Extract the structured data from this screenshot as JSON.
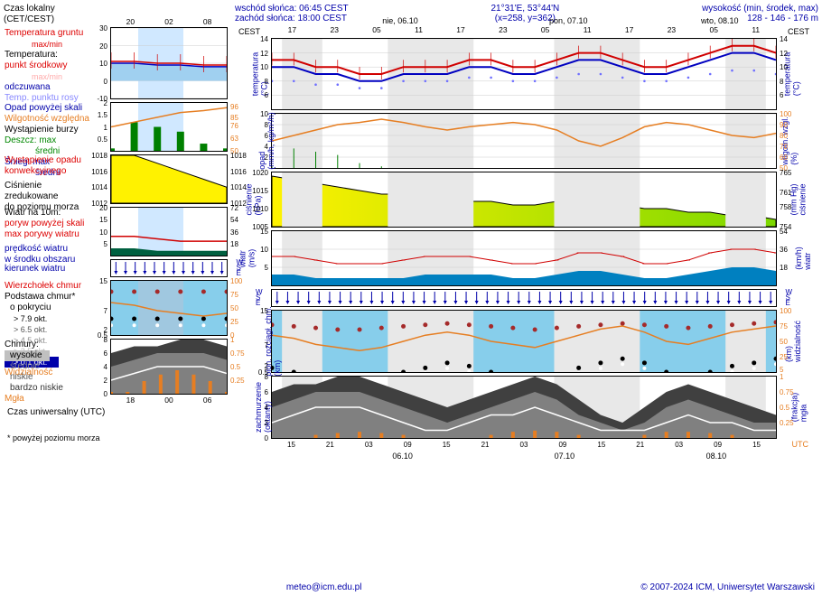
{
  "header": {
    "sunrise_label": "wschód słońca: 06:45 CEST",
    "sunset_label": "zachód słońca: 18:00 CEST",
    "coord": "21°31'E, 53°44'N",
    "xy": "(x=258, y=362)",
    "elevation_label": "wysokość (min, środek, max)",
    "elevation": "128 - 146 - 176 m"
  },
  "legend": {
    "local_time": "Czas lokalny",
    "local_tz": "(CET/CEST)",
    "ground_temp": "Temperatura gruntu",
    "maxmin": "max/min",
    "temp_label": "Temperatura:",
    "midpoint": "punkt środkowy",
    "max_min_tiny": "max/min",
    "felt": "odczuwana",
    "dewpoint": "Temp. punktu rosy",
    "precip_over": "Opad powyżej skali",
    "rel_humidity": "Wilgotność względna",
    "storm": "Wystąpienie burzy",
    "rain": "Deszcz:",
    "max": "max",
    "mean": "średni",
    "snow": "Śnieg:",
    "convective": "Wystąpienie opadu",
    "convective2": "konwekcyjnego",
    "pressure": "Ciśnienie",
    "pressure_red": "zredukowane",
    "pressure_sea": "do poziomu morza",
    "wind10m": "Wiatr na 10m:",
    "gust_over": "poryw powyżej skali",
    "max_gust": "max porywy wiatru",
    "wind_speed": "prędkość wiatru",
    "wind_mid": "w środku obszaru",
    "wind_dir": "kierunek wiatru",
    "cloud_top": "Wierzchołek chmur",
    "cloud_base": "Podstawa chmur*",
    "cloud_cover": "o pokryciu",
    "okt79": "> 7.9 okt.",
    "okt65": "> 6.5 okt.",
    "okt45": "> 4.5 okt.",
    "okt25": "> 2.5 okt.",
    "okt01": "> 0.1 okt.",
    "visibility": "Widzialność",
    "clouds": "Chmury:",
    "high": "wysokie",
    "mid": "średnie",
    "low": "niskie",
    "vlow": "bardzo niskie",
    "fog": "Mgła",
    "utc": "Czas uniwersalny (UTC)",
    "note": "* powyżej poziomu morza",
    "cest_l": "CEST",
    "cest_r": "CEST",
    "utc_r": "UTC"
  },
  "footer": {
    "email": "meteo@icm.edu.pl",
    "copyright": "© 2007-2024 ICM, Uniwersytet Warszawski"
  },
  "top_dates": {
    "d1": "nie, 06.10",
    "d2": "pon, 07.10",
    "d3": "wto, 08.10"
  },
  "rlabels": {
    "temp": "temperatura",
    "temp_unit": "(°C)",
    "precip": "opad",
    "precip_unit": "(mm/h, kg/m²/h)",
    "hum": "wilgotn. wzgl.",
    "hum_unit": "(%)",
    "press": "ciśnienie",
    "press_unit": "(hPa)",
    "press_r": "ciśnienie",
    "press_r_unit": "(mm Hg)",
    "wind": "wiatr",
    "wind_unit": "(m/s)",
    "wind_r": "wiatr",
    "wind_r_unit": "(km/h)",
    "cloud_ext": "pion. rozciągł. chm.",
    "cloud_ext_unit": "(km)",
    "vis": "widzialność",
    "vis_unit": "(km)",
    "cloud_oct": "zachmurzenie",
    "cloud_oct_unit": "(oktanty)",
    "fog_r": "mgła",
    "fog_r_unit": "(frakcja)"
  },
  "xticks_big": [
    "17",
    "23",
    "05",
    "11",
    "17",
    "23",
    "05",
    "11",
    "17",
    "23",
    "05",
    "11"
  ],
  "xticks_small": [
    "20",
    "02",
    "08"
  ],
  "xticks_utc_small": [
    "18",
    "00",
    "06"
  ],
  "xticks_utc_big": [
    "15",
    "21",
    "03",
    "09",
    "15",
    "21",
    "03",
    "09",
    "15",
    "21",
    "03",
    "09",
    "15"
  ],
  "xdates_utc": [
    "06.10",
    "07.10",
    "08.10"
  ],
  "temp": {
    "ylim": [
      -10,
      30
    ],
    "yticks": [
      -10,
      0,
      10,
      20,
      30
    ],
    "big_ylim": [
      4,
      14
    ],
    "big_yticks": [
      6,
      8,
      10,
      12,
      14
    ],
    "red_line": [
      11,
      11,
      10,
      10,
      9,
      9,
      10,
      10,
      10,
      11,
      11,
      10,
      10,
      11,
      12,
      12,
      11,
      10,
      10,
      11,
      12,
      13,
      13,
      12
    ],
    "blue_line": [
      10,
      10,
      9,
      9,
      8,
      8,
      9,
      9,
      9,
      10,
      10,
      9,
      9,
      10,
      11,
      11,
      10,
      9,
      9,
      10,
      11,
      12,
      12,
      11
    ],
    "dew_line": [
      8,
      8,
      7.5,
      7.5,
      7,
      7,
      8,
      8,
      8,
      8.5,
      8.5,
      8,
      8,
      8.5,
      9,
      9,
      8.5,
      8,
      8,
      8.5,
      9,
      9.5,
      9.5,
      9
    ],
    "colors": {
      "red": "#d00000",
      "blue": "#0000c0",
      "lblue": "#7070ff",
      "errbar": "#d00000"
    }
  },
  "precip": {
    "ylim": [
      0,
      2
    ],
    "yticks": [
      0.5,
      1.0,
      1.5,
      2.0
    ],
    "big_ylim": [
      0,
      10
    ],
    "big_yticks": [
      2,
      4,
      6,
      8,
      10
    ],
    "bars": [
      0.1,
      1.2,
      1.0,
      0.8,
      0.3,
      0.1,
      0,
      0,
      0,
      0,
      0,
      0,
      0,
      0,
      0,
      0,
      0,
      0,
      0,
      0,
      0,
      0,
      0,
      0
    ],
    "hum_ylim": [
      50,
      100
    ],
    "hum_yticks": [
      50,
      60,
      70,
      80,
      90,
      100
    ],
    "hum_line": [
      75,
      80,
      85,
      90,
      92,
      95,
      92,
      88,
      85,
      88,
      90,
      92,
      90,
      85,
      75,
      70,
      78,
      88,
      92,
      90,
      85,
      80,
      78,
      82
    ],
    "colors": {
      "bar": "#008000",
      "hum": "#e67e22"
    }
  },
  "press": {
    "ylim": [
      1012,
      1018
    ],
    "yticks": [
      1012,
      1014,
      1016,
      1018
    ],
    "big_ylim": [
      1005,
      1020
    ],
    "big_yticks": [
      1005,
      1010,
      1015,
      1020
    ],
    "mmhg_yticks": [
      754,
      758,
      761,
      765
    ],
    "line": [
      1019,
      1018,
      1017,
      1016,
      1015,
      1014,
      1014,
      1013,
      1013,
      1012,
      1012,
      1011,
      1011,
      1012,
      1012,
      1011,
      1011,
      1010,
      1010,
      1009,
      1009,
      1008,
      1008,
      1007
    ],
    "fill_colors": [
      "#fff200",
      "#d4e800",
      "#a8e000",
      "#7cd800"
    ]
  },
  "wind": {
    "ylim": [
      0,
      20
    ],
    "yticks": [
      5,
      10,
      15,
      20
    ],
    "big_ylim": [
      0,
      15
    ],
    "big_yticks": [
      5,
      10,
      15
    ],
    "kmh_yticks": [
      18,
      36,
      54
    ],
    "speed": [
      3,
      3,
      2,
      2,
      2,
      2,
      2,
      3,
      3,
      3,
      3,
      2,
      2,
      3,
      4,
      4,
      3,
      2,
      2,
      3,
      4,
      5,
      5,
      4
    ],
    "gust": [
      8,
      8,
      7,
      6,
      6,
      6,
      7,
      8,
      8,
      8,
      7,
      6,
      6,
      7,
      9,
      9,
      8,
      6,
      6,
      7,
      9,
      10,
      10,
      9
    ],
    "colors": {
      "fill": "#0080c0",
      "gust": "#d00000"
    }
  },
  "clouds": {
    "ylim": [
      0,
      15
    ],
    "yticks": [
      0.5,
      2.0,
      7.0,
      15.0
    ],
    "vis_yticks": [
      0,
      25,
      50,
      75,
      100
    ],
    "big_vis_yticks": [
      5,
      25,
      50,
      75,
      100
    ],
    "base_dots": [
      1.2,
      1.0,
      0.8,
      0.7,
      0.7,
      0.8,
      1.0,
      1.2,
      1.5,
      1.3,
      1.0,
      0.8,
      0.7,
      0.9,
      1.2,
      1.5,
      1.8,
      1.5,
      1.0,
      0.8,
      1.0,
      1.3,
      1.5,
      1.8
    ],
    "top_dots": [
      8,
      7.5,
      7,
      6.5,
      6.5,
      7,
      7.5,
      8,
      8.5,
      8,
      7.5,
      7,
      6.5,
      7,
      7.5,
      8,
      8.5,
      8,
      7.5,
      7,
      7.5,
      8,
      8.5,
      9
    ],
    "vis_line": [
      60,
      55,
      45,
      40,
      35,
      40,
      50,
      60,
      65,
      60,
      50,
      45,
      40,
      50,
      60,
      70,
      75,
      65,
      50,
      45,
      55,
      65,
      70,
      75
    ],
    "colors": {
      "sky": "#87ceeb",
      "dot_black": "#000",
      "dot_red": "#a52a2a",
      "dot_white": "#fff",
      "vis": "#e67e22"
    }
  },
  "oct": {
    "ylim": [
      0,
      8
    ],
    "yticks": [
      0,
      2,
      4,
      6,
      8
    ],
    "frac_yticks": [
      0.25,
      0.5,
      0.75,
      1
    ],
    "low": [
      6,
      7,
      7,
      8,
      8,
      7,
      6,
      5,
      4,
      5,
      6,
      7,
      8,
      7,
      5,
      3,
      2,
      4,
      6,
      7,
      6,
      5,
      4,
      3
    ],
    "mid": [
      4,
      5,
      6,
      6,
      6,
      5,
      4,
      3,
      2,
      3,
      4,
      5,
      6,
      5,
      3,
      2,
      1,
      2,
      4,
      5,
      4,
      3,
      2,
      2
    ],
    "high": [
      2,
      3,
      4,
      4,
      4,
      3,
      2,
      1,
      1,
      2,
      3,
      3,
      4,
      3,
      2,
      1,
      1,
      1,
      2,
      3,
      2,
      2,
      1,
      1
    ],
    "fog_bars": [
      0,
      0,
      0.05,
      0.08,
      0.1,
      0.08,
      0.05,
      0,
      0,
      0,
      0.05,
      0.1,
      0.12,
      0.1,
      0.05,
      0,
      0,
      0.05,
      0.1,
      0.1,
      0.08,
      0.05,
      0,
      0
    ],
    "colors": {
      "low": "#404040",
      "mid": "#808080",
      "high": "#c0c0c0",
      "fog": "#e67e22"
    }
  },
  "night_bands_big": [
    {
      "start": 0.02,
      "end": 0.1
    },
    {
      "start": 0.23,
      "end": 0.4
    },
    {
      "start": 0.56,
      "end": 0.73
    },
    {
      "start": 0.9,
      "end": 0.98
    }
  ]
}
